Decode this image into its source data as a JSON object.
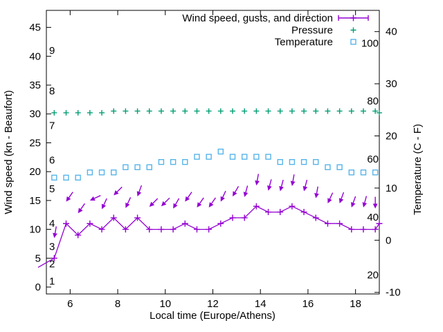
{
  "chart_data": {
    "type": "line",
    "title": "",
    "xlabel": "Local time (Europe/Athens)",
    "ylabel_left": "Wind speed (kn - Beaufort)",
    "ylabel_right": "Temperature (C - F)",
    "x_range": [
      5,
      19
    ],
    "y_left_range": [
      -1.2,
      48
    ],
    "y_right_range": [
      -10.3,
      44.1
    ],
    "grid": "off",
    "legend_position": "top-right-inside",
    "x_ticks": [
      6,
      8,
      10,
      12,
      14,
      16,
      18
    ],
    "y_left_ticks": [
      0,
      5,
      10,
      15,
      20,
      25,
      30,
      35,
      40,
      45
    ],
    "y_right_ticks": [
      -10,
      0,
      10,
      20,
      30,
      40
    ],
    "beaufort_scale_labels": [
      {
        "label": "1",
        "kn": 1
      },
      {
        "label": "2",
        "kn": 4
      },
      {
        "label": "3",
        "kn": 7
      },
      {
        "label": "4",
        "kn": 11
      },
      {
        "label": "5",
        "kn": 17
      },
      {
        "label": "6",
        "kn": 22
      },
      {
        "label": "7",
        "kn": 28
      },
      {
        "label": "8",
        "kn": 34
      },
      {
        "label": "9",
        "kn": 41
      }
    ],
    "fahrenheit_scale_labels": [
      {
        "label": "20",
        "c": -6.67
      },
      {
        "label": "40",
        "c": 4.44
      },
      {
        "label": "60",
        "c": 15.56
      },
      {
        "label": "80",
        "c": 26.67
      },
      {
        "label": "100",
        "c": 37.78
      }
    ],
    "legend": [
      {
        "label": "Wind speed, gusts, and direction",
        "color": "#9400d3",
        "sample": "errorbar-line"
      },
      {
        "label": "Pressure",
        "color": "#009e73",
        "sample": "plus"
      },
      {
        "label": "Temperature",
        "color": "#56b4e9",
        "sample": "open-square"
      }
    ],
    "series": {
      "wind": {
        "name": "Wind speed, gusts, and direction",
        "color": "#9400d3",
        "marker": "plus",
        "x": [
          4.65,
          5.33,
          5.83,
          6.33,
          6.83,
          7.33,
          7.83,
          8.33,
          8.83,
          9.33,
          9.83,
          10.33,
          10.83,
          11.33,
          11.83,
          12.33,
          12.83,
          13.33,
          13.83,
          14.33,
          14.83,
          15.33,
          15.83,
          16.33,
          16.83,
          17.33,
          17.83,
          18.33,
          18.83,
          19.0
        ],
        "y_kn": [
          3.4,
          5,
          11,
          9,
          11,
          10,
          12,
          10,
          12,
          10,
          10,
          10,
          11,
          10,
          10,
          11,
          12,
          12,
          14,
          13,
          13,
          14,
          13,
          12,
          11,
          11,
          10,
          10,
          10,
          11
        ],
        "marker_from_index": 1
      },
      "wind_direction_arrows": {
        "color": "#9400d3",
        "x": [
          5.33,
          5.83,
          6.33,
          6.83,
          7.33,
          7.83,
          8.33,
          8.83,
          9.33,
          9.83,
          10.33,
          10.83,
          11.33,
          11.83,
          12.33,
          12.83,
          13.33,
          13.83,
          14.33,
          14.83,
          15.33,
          15.83,
          16.33,
          16.83,
          17.33,
          17.83,
          18.33,
          18.83
        ],
        "tip_kn": [
          8.5,
          14.8,
          12.8,
          15.0,
          13.5,
          15.9,
          13.7,
          15.7,
          13.9,
          14.0,
          13.6,
          14.8,
          13.8,
          13.8,
          14.8,
          15.7,
          15.6,
          17.6,
          16.7,
          16.6,
          17.5,
          16.6,
          15.4,
          14.5,
          14.5,
          13.8,
          13.8,
          13.6
        ],
        "bearing_deg": [
          190,
          215,
          215,
          245,
          205,
          225,
          205,
          200,
          225,
          225,
          210,
          215,
          215,
          215,
          205,
          210,
          195,
          190,
          195,
          195,
          190,
          195,
          190,
          205,
          200,
          200,
          195,
          180
        ]
      },
      "pressure": {
        "name": "Pressure",
        "color": "#009e73",
        "marker": "plus",
        "x": [
          5.33,
          5.83,
          6.33,
          6.83,
          7.33,
          7.83,
          8.33,
          8.83,
          9.33,
          9.83,
          10.33,
          10.83,
          11.33,
          11.83,
          12.33,
          12.83,
          13.33,
          13.83,
          14.33,
          14.83,
          15.33,
          15.83,
          16.33,
          16.83,
          17.33,
          17.83,
          18.33,
          18.83,
          19.0
        ],
        "y_left_axis": [
          30.2,
          30.2,
          30.2,
          30.2,
          30.2,
          30.5,
          30.5,
          30.5,
          30.5,
          30.5,
          30.5,
          30.5,
          30.5,
          30.5,
          30.5,
          30.5,
          30.5,
          30.5,
          30.5,
          30.5,
          30.5,
          30.5,
          30.5,
          30.5,
          30.5,
          30.5,
          30.5,
          30.5,
          30.2
        ]
      },
      "temperature": {
        "name": "Temperature",
        "color": "#56b4e9",
        "marker": "open-square",
        "x": [
          5.33,
          5.83,
          6.33,
          6.83,
          7.33,
          7.83,
          8.33,
          8.83,
          9.33,
          9.83,
          10.33,
          10.83,
          11.33,
          11.83,
          12.33,
          12.83,
          13.33,
          13.83,
          14.33,
          14.83,
          15.33,
          15.83,
          16.33,
          16.83,
          17.33,
          17.83,
          18.33,
          18.83
        ],
        "y_c": [
          12,
          12,
          12,
          13,
          13,
          13,
          14,
          14,
          14,
          15,
          15,
          15,
          16,
          16,
          17,
          16,
          16,
          16,
          16,
          15,
          15,
          15,
          15,
          14,
          14,
          13,
          13,
          13
        ]
      }
    },
    "axis_color": "#000000"
  }
}
